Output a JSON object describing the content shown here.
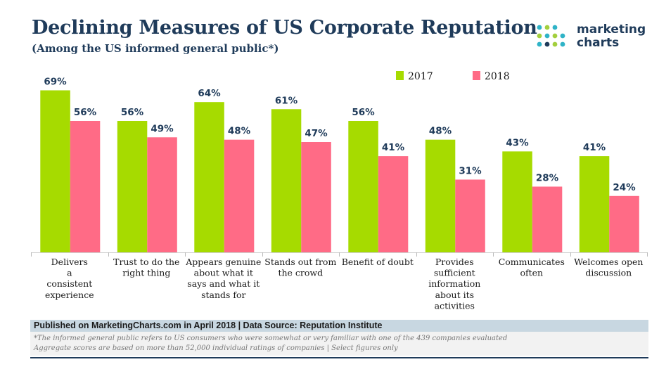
{
  "brand": {
    "line1": "marketing",
    "line2": "charts",
    "dot_colors": [
      "#2fb3c7",
      "#a3cf3d",
      "#1f3b5a"
    ]
  },
  "chart_data": {
    "type": "bar",
    "title": "Declining Measures of US Corporate Reputation",
    "subtitle": "(Among the US informed general public*)",
    "categories": [
      "Delivers a consistent experience",
      "Trust to do the right thing",
      "Appears genuine about what it says and what it stands for",
      "Stands out from the crowd",
      "Benefit of doubt",
      "Provides sufficient information about its activities",
      "Communicates often",
      "Welcomes open discussion"
    ],
    "category_lines": [
      [
        "Delivers",
        "a",
        "consistent",
        "experience"
      ],
      [
        "Trust to do the",
        "right thing"
      ],
      [
        "Appears genuine",
        "about what it",
        "says and what it",
        "stands for"
      ],
      [
        "Stands out from",
        "the crowd"
      ],
      [
        "Benefit of doubt"
      ],
      [
        "Provides",
        "sufficient",
        "information",
        "about its",
        "activities"
      ],
      [
        "Communicates",
        "often"
      ],
      [
        "Welcomes open",
        "discussion"
      ]
    ],
    "series": [
      {
        "name": "2017",
        "color": "#a6db00",
        "values": [
          69,
          56,
          64,
          61,
          56,
          48,
          43,
          41
        ]
      },
      {
        "name": "2018",
        "color": "#ff6b86",
        "values": [
          56,
          49,
          48,
          47,
          41,
          31,
          28,
          24
        ]
      }
    ],
    "value_suffix": "%",
    "ylim": [
      0,
      80
    ],
    "xlabel": "",
    "ylabel": "",
    "grid": false,
    "legend_position": "top-right"
  },
  "footer": {
    "published": "Published on MarketingCharts.com in April 2018 | Data Source: Reputation Institute",
    "note1": "*The informed general public refers to US consumers who were somewhat or very familiar with one of the 439 companies evaluated",
    "note2": "Aggregate scores are based on more than 52,000 individual ratings of companies | Select figures only"
  }
}
